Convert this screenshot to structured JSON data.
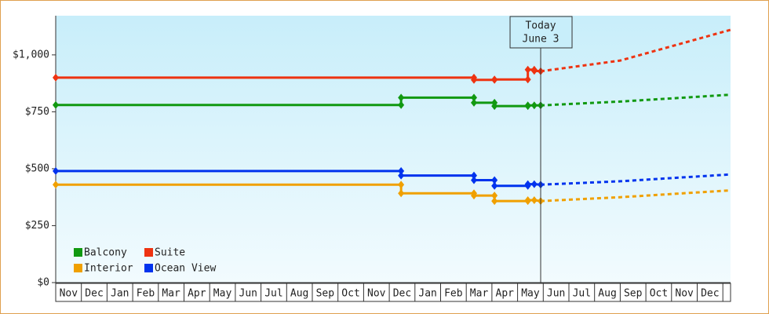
{
  "chart_data": {
    "type": "line",
    "xlim": [
      0,
      26.3
    ],
    "xticks": [
      {
        "value": 0.5,
        "label": "Nov"
      },
      {
        "value": 1.5,
        "label": "Dec"
      },
      {
        "value": 2.5,
        "label": "Jan"
      },
      {
        "value": 3.5,
        "label": "Feb"
      },
      {
        "value": 4.5,
        "label": "Mar"
      },
      {
        "value": 5.5,
        "label": "Apr"
      },
      {
        "value": 6.5,
        "label": "May"
      },
      {
        "value": 7.5,
        "label": "Jun"
      },
      {
        "value": 8.5,
        "label": "Jul"
      },
      {
        "value": 9.5,
        "label": "Aug"
      },
      {
        "value": 10.5,
        "label": "Sep"
      },
      {
        "value": 11.5,
        "label": "Oct"
      },
      {
        "value": 12.5,
        "label": "Nov"
      },
      {
        "value": 13.5,
        "label": "Dec"
      },
      {
        "value": 14.5,
        "label": "Jan"
      },
      {
        "value": 15.5,
        "label": "Feb"
      },
      {
        "value": 16.5,
        "label": "Mar"
      },
      {
        "value": 17.5,
        "label": "Apr"
      },
      {
        "value": 18.5,
        "label": "May"
      },
      {
        "value": 19.5,
        "label": "Jun"
      },
      {
        "value": 20.5,
        "label": "Jul"
      },
      {
        "value": 21.5,
        "label": "Aug"
      },
      {
        "value": 22.5,
        "label": "Sep"
      },
      {
        "value": 23.5,
        "label": "Oct"
      },
      {
        "value": 24.5,
        "label": "Nov"
      },
      {
        "value": 25.5,
        "label": "Dec"
      }
    ],
    "ylim": [
      0,
      1172
    ],
    "yticks": [
      {
        "value": 0,
        "label": "$0"
      },
      {
        "value": 250,
        "label": "$250"
      },
      {
        "value": 500,
        "label": "$500"
      },
      {
        "value": 750,
        "label": "$750"
      },
      {
        "value": 1000,
        "label": "$1,000"
      }
    ],
    "legend_position": "lower-left",
    "annotation": {
      "x": 18.9,
      "lines": [
        "Today",
        "June 3"
      ]
    },
    "series": [
      {
        "name": "Balcony",
        "color": "#119911",
        "x": [
          0,
          13.46,
          13.46,
          16.3,
          16.3,
          17.1,
          17.1,
          18.4,
          18.4,
          18.65,
          18.9
        ],
        "values": [
          780,
          780,
          812,
          812,
          790,
          790,
          775,
          775,
          778,
          778,
          778
        ],
        "projection": {
          "x": [
            18.9,
            22,
            26.3
          ],
          "values": [
            778,
            795,
            825
          ]
        }
      },
      {
        "name": "Suite",
        "color": "#ee3311",
        "x": [
          0,
          16.3,
          16.3,
          17.1,
          17.1,
          18.4,
          18.4,
          18.65,
          18.65,
          18.9
        ],
        "values": [
          900,
          900,
          890,
          890,
          892,
          892,
          935,
          935,
          930,
          928
        ],
        "projection": {
          "x": [
            18.9,
            22,
            26.3
          ],
          "values": [
            928,
            975,
            1110
          ]
        }
      },
      {
        "name": "Interior",
        "color": "#f0a000",
        "x": [
          0,
          13.46,
          13.46,
          16.3,
          16.3,
          17.1,
          17.1,
          18.4,
          18.4,
          18.65,
          18.9
        ],
        "values": [
          430,
          430,
          392,
          392,
          382,
          382,
          358,
          358,
          362,
          362,
          358
        ],
        "projection": {
          "x": [
            18.9,
            22,
            26.3
          ],
          "values": [
            358,
            375,
            405
          ]
        }
      },
      {
        "name": "Ocean View",
        "color": "#0033ee",
        "x": [
          0,
          13.46,
          13.46,
          16.3,
          16.3,
          17.1,
          17.1,
          18.4,
          18.4,
          18.65,
          18.9
        ],
        "values": [
          490,
          490,
          470,
          470,
          450,
          450,
          425,
          425,
          432,
          432,
          430
        ],
        "projection": {
          "x": [
            18.9,
            22,
            26.3
          ],
          "values": [
            430,
            445,
            475
          ]
        }
      }
    ]
  }
}
